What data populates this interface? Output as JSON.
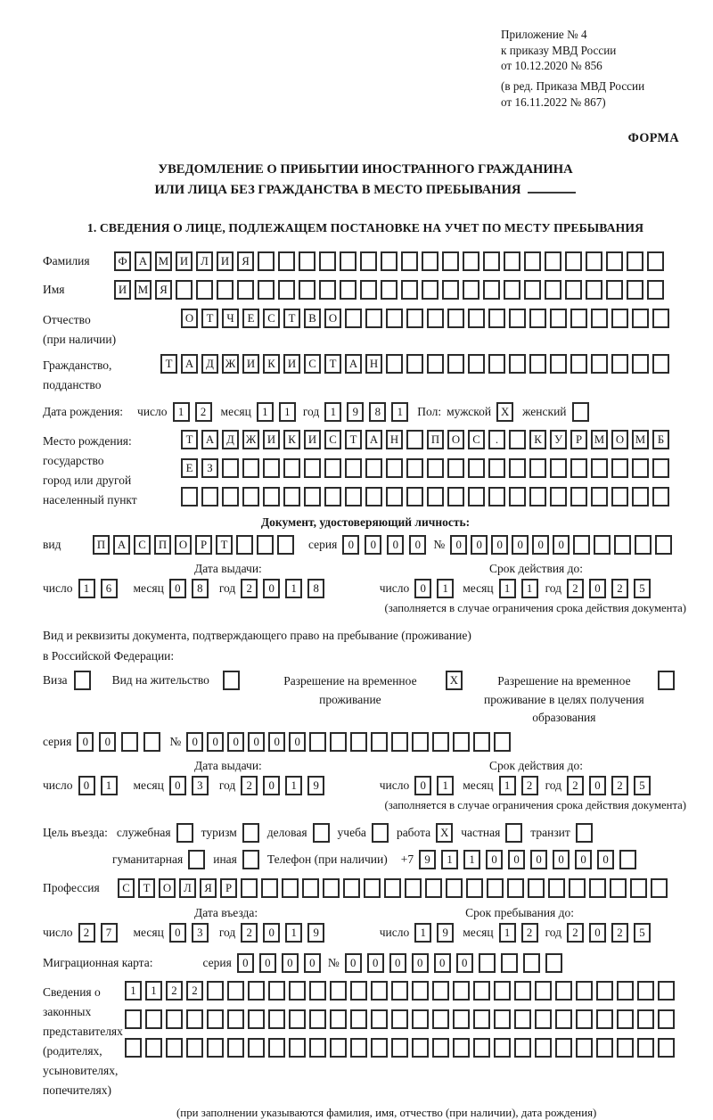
{
  "header": {
    "line1": "Приложение № 4",
    "line2": "к приказу МВД России",
    "line3": "от 10.12.2020 № 856",
    "line4": "(в ред. Приказа МВД России",
    "line5": "от 16.11.2022 № 867)",
    "forma": "ФОРМА"
  },
  "title": {
    "line1": "УВЕДОМЛЕНИЕ О ПРИБЫТИИ ИНОСТРАННОГО ГРАЖДАНИНА",
    "line2": "ИЛИ ЛИЦА БЕЗ ГРАЖДАНСТВА В МЕСТО ПРЕБЫВАНИЯ"
  },
  "section1_title": "1. СВЕДЕНИЯ О ЛИЦЕ, ПОДЛЕЖАЩЕМ ПОСТАНОВКЕ НА УЧЕТ ПО МЕСТУ ПРЕБЫВАНИЯ",
  "labels": {
    "surname": "Фамилия",
    "given_name": "Имя",
    "patronymic": "Отчество",
    "patronymic_note": "(при наличии)",
    "citizenship_1": "Гражданство,",
    "citizenship_2": "подданство",
    "birth_date": "Дата рождения:",
    "day": "число",
    "month": "месяц",
    "year": "год",
    "sex": "Пол:",
    "male": "мужской",
    "female": "женский",
    "birthplace_1": "Место рождения:",
    "birthplace_2": "государство",
    "birthplace_3": "город или другой",
    "birthplace_4": "населенный пункт",
    "identity_doc_heading": "Документ, удостоверяющий личность:",
    "doc_type": "вид",
    "series": "серия",
    "number": "№",
    "issue_date": "Дата выдачи:",
    "valid_until": "Срок действия до:",
    "validity_note": "(заполняется в случае ограничения срока действия документа)",
    "residence_doc_line1": "Вид и реквизиты документа, подтверждающего право на пребывание (проживание)",
    "residence_doc_line2": "в Российской Федерации:",
    "visa": "Виза",
    "residence_permit": "Вид на жительство",
    "temp_residence_permit": "Разрешение на временное проживание",
    "temp_residence_permit_edu": "Разрешение на временное проживание в целях получения образования",
    "entry_purpose": "Цель въезда:",
    "purpose_official": "служебная",
    "purpose_tourism": "туризм",
    "purpose_business": "деловая",
    "purpose_study": "учеба",
    "purpose_work": "работа",
    "purpose_private": "частная",
    "purpose_transit": "транзит",
    "purpose_humanitarian": "гуманитарная",
    "purpose_other": "иная",
    "phone": "Телефон (при наличии)",
    "phone_prefix": "+7",
    "profession": "Профессия",
    "entry_date": "Дата въезда:",
    "stay_until": "Срок пребывания до:",
    "migration_card": "Миграционная карта:",
    "guardians_1": "Сведения о",
    "guardians_2": "законных",
    "guardians_3": "представителях",
    "guardians_4": "(родителях,",
    "guardians_5": "усыновителях,",
    "guardians_6": "попечителях)",
    "guardians_note": "(при заполнении указываются фамилия, имя, отчество (при наличии), дата рождения)"
  },
  "cells": {
    "surname": {
      "text": "ФАМИЛИЯ",
      "len": 27
    },
    "given_name": {
      "text": "ИМЯ",
      "len": 27
    },
    "patronymic": {
      "text": "ОТЧЕСТВО",
      "len": 24
    },
    "citizenship": {
      "text": "ТАДЖИКИСТАН",
      "len": 25
    },
    "birth_day": {
      "text": "12",
      "len": 2
    },
    "birth_month": {
      "text": "11",
      "len": 2
    },
    "birth_year": {
      "text": "1981",
      "len": 4
    },
    "sex_male": {
      "text": "X",
      "len": 1
    },
    "sex_female": {
      "text": "",
      "len": 1
    },
    "birthplace_row1": {
      "text": "ТАДЖИКИСТАН ПОС. КУРМОМБ",
      "len": 24
    },
    "birthplace_row2": {
      "text": "ЕЗ",
      "len": 24
    },
    "birthplace_row3": {
      "text": "",
      "len": 24
    },
    "doc_type": {
      "text": "ПАСПОРТ",
      "len": 10
    },
    "doc_series": {
      "text": "0000",
      "len": 4
    },
    "doc_number": {
      "text": "000000",
      "len": 11
    },
    "doc_issue_day": {
      "text": "16",
      "len": 2
    },
    "doc_issue_month": {
      "text": "08",
      "len": 2
    },
    "doc_issue_year": {
      "text": "2018",
      "len": 4
    },
    "doc_valid_day": {
      "text": "01",
      "len": 2
    },
    "doc_valid_month": {
      "text": "11",
      "len": 2
    },
    "doc_valid_year": {
      "text": "2025",
      "len": 4
    },
    "visa_checkbox": {
      "text": "",
      "len": 1
    },
    "residence_permit_checkbox": {
      "text": "",
      "len": 1
    },
    "temp_residence_checkbox": {
      "text": "X",
      "len": 1
    },
    "temp_residence_edu_checkbox": {
      "text": "",
      "len": 1
    },
    "permit_series": {
      "text": "00",
      "len": 4
    },
    "permit_number": {
      "text": "000000",
      "len": 16
    },
    "permit_issue_day": {
      "text": "01",
      "len": 2
    },
    "permit_issue_month": {
      "text": "03",
      "len": 2
    },
    "permit_issue_year": {
      "text": "2019",
      "len": 4
    },
    "permit_valid_day": {
      "text": "01",
      "len": 2
    },
    "permit_valid_month": {
      "text": "12",
      "len": 2
    },
    "permit_valid_year": {
      "text": "2025",
      "len": 4
    },
    "purpose_official_cb": {
      "text": "",
      "len": 1
    },
    "purpose_tourism_cb": {
      "text": "",
      "len": 1
    },
    "purpose_business_cb": {
      "text": "",
      "len": 1
    },
    "purpose_study_cb": {
      "text": "",
      "len": 1
    },
    "purpose_work_cb": {
      "text": "X",
      "len": 1
    },
    "purpose_private_cb": {
      "text": "",
      "len": 1
    },
    "purpose_transit_cb": {
      "text": "",
      "len": 1
    },
    "purpose_humanitarian_cb": {
      "text": "",
      "len": 1
    },
    "purpose_other_cb": {
      "text": "",
      "len": 1
    },
    "phone_number": {
      "text": "911000000",
      "len": 10
    },
    "profession": {
      "text": "СТОЛЯР",
      "len": 27
    },
    "entry_day": {
      "text": "27",
      "len": 2
    },
    "entry_month": {
      "text": "03",
      "len": 2
    },
    "entry_year": {
      "text": "2019",
      "len": 4
    },
    "stay_day": {
      "text": "19",
      "len": 2
    },
    "stay_month": {
      "text": "12",
      "len": 2
    },
    "stay_year": {
      "text": "2025",
      "len": 4
    },
    "migration_series": {
      "text": "0000",
      "len": 4
    },
    "migration_number": {
      "text": "000000",
      "len": 10
    },
    "guardians_row1": {
      "text": "1122",
      "len": 27
    },
    "guardians_row2": {
      "text": "",
      "len": 27
    },
    "guardians_row3": {
      "text": "",
      "len": 27
    }
  }
}
